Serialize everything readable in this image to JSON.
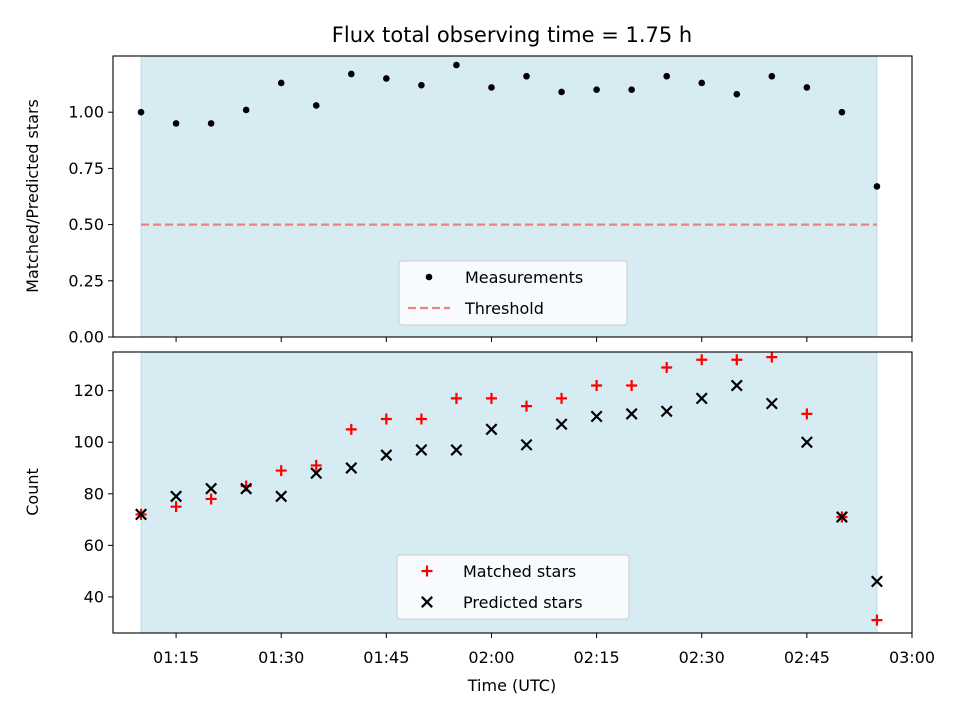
{
  "chart_data": [
    {
      "type": "scatter",
      "title": "Flux total observing time = 1.75 h",
      "ylabel": "Matched/Predicted stars",
      "xlabel": "",
      "xlim": [
        "01:06",
        "03:00"
      ],
      "ylim": [
        0,
        1.25
      ],
      "x_ticks": [
        "01:15",
        "01:30",
        "01:45",
        "02:00",
        "02:15",
        "02:30",
        "02:45",
        "03:00"
      ],
      "y_ticks": [
        "0.00",
        "0.25",
        "0.50",
        "0.75",
        "1.00"
      ],
      "shaded_span": [
        "01:10",
        "02:55"
      ],
      "legend_position": "lower-center",
      "grid": false,
      "series": [
        {
          "name": "Measurements",
          "color": "#000000",
          "marker": "dot",
          "x": [
            "01:10",
            "01:15",
            "01:20",
            "01:25",
            "01:30",
            "01:35",
            "01:40",
            "01:45",
            "01:50",
            "01:55",
            "02:00",
            "02:05",
            "02:10",
            "02:15",
            "02:20",
            "02:25",
            "02:30",
            "02:35",
            "02:40",
            "02:45",
            "02:50",
            "02:55"
          ],
          "y": [
            1.0,
            0.95,
            0.95,
            1.01,
            1.13,
            1.03,
            1.17,
            1.15,
            1.12,
            1.21,
            1.11,
            1.16,
            1.09,
            1.1,
            1.1,
            1.16,
            1.13,
            1.08,
            1.16,
            1.11,
            1.0,
            0.67
          ]
        },
        {
          "name": "Threshold",
          "color": "#f08080",
          "style": "dashed",
          "x": [
            "01:10",
            "02:55"
          ],
          "y": [
            0.5,
            0.5
          ]
        }
      ]
    },
    {
      "type": "scatter",
      "title": "",
      "ylabel": "Count",
      "xlabel": "Time (UTC)",
      "xlim": [
        "01:06",
        "03:00"
      ],
      "ylim": [
        26,
        135
      ],
      "x_ticks": [
        "01:15",
        "01:30",
        "01:45",
        "02:00",
        "02:15",
        "02:30",
        "02:45",
        "03:00"
      ],
      "y_ticks": [
        "40",
        "60",
        "80",
        "100",
        "120"
      ],
      "shaded_span": [
        "01:10",
        "02:55"
      ],
      "legend_position": "lower-center",
      "grid": false,
      "series": [
        {
          "name": "Matched stars",
          "color": "#ff0000",
          "marker": "plus",
          "x": [
            "01:10",
            "01:15",
            "01:20",
            "01:25",
            "01:30",
            "01:35",
            "01:40",
            "01:45",
            "01:50",
            "01:55",
            "02:00",
            "02:05",
            "02:10",
            "02:15",
            "02:20",
            "02:25",
            "02:30",
            "02:35",
            "02:40",
            "02:45",
            "02:50",
            "02:55"
          ],
          "y": [
            72,
            75,
            78,
            83,
            89,
            91,
            105,
            109,
            109,
            117,
            117,
            114,
            117,
            122,
            122,
            129,
            132,
            132,
            133,
            111,
            71,
            31
          ]
        },
        {
          "name": "Predicted stars",
          "color": "#000000",
          "marker": "x",
          "x": [
            "01:10",
            "01:15",
            "01:20",
            "01:25",
            "01:30",
            "01:35",
            "01:40",
            "01:45",
            "01:50",
            "01:55",
            "02:00",
            "02:05",
            "02:10",
            "02:15",
            "02:20",
            "02:25",
            "02:30",
            "02:35",
            "02:40",
            "02:45",
            "02:50",
            "02:55"
          ],
          "y": [
            72,
            79,
            82,
            82,
            79,
            88,
            90,
            95,
            97,
            97,
            105,
            99,
            107,
            110,
            111,
            112,
            117,
            122,
            115,
            100,
            71,
            46
          ]
        }
      ]
    }
  ]
}
